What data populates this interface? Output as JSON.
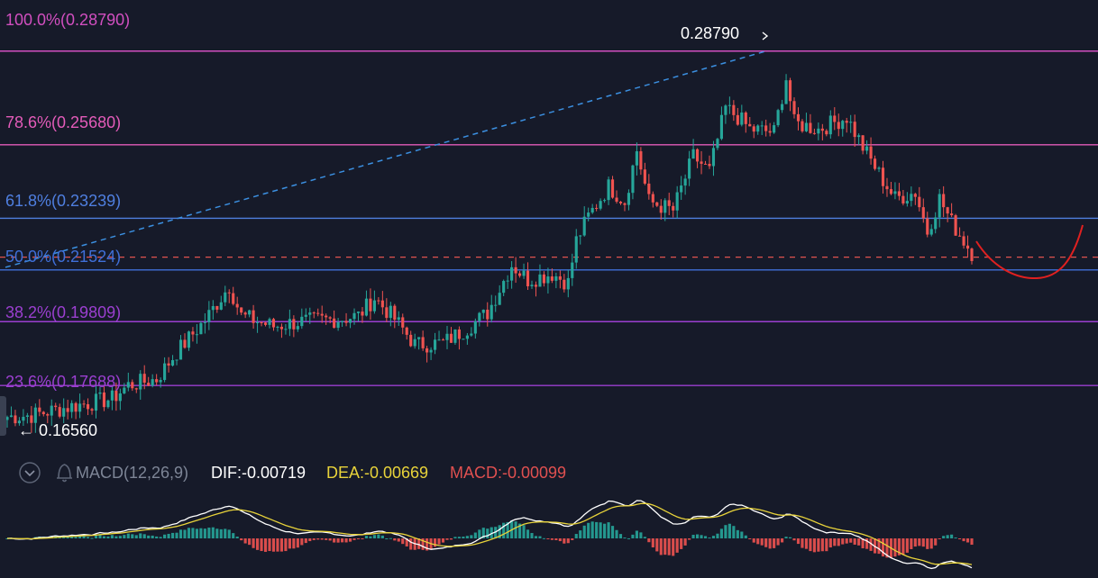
{
  "chart_data": {
    "type": "candlestick",
    "yaxis_range": [
      0.162,
      0.2935
    ],
    "fib_levels": [
      {
        "label": "100.0%(0.28790)",
        "value": 0.2879,
        "color": "#d24fc0"
      },
      {
        "label": "78.6%(0.25680)",
        "value": 0.2568,
        "color": "#e35bb9"
      },
      {
        "label": "61.8%(0.23239)",
        "value": 0.23239,
        "color": "#4f7fe0"
      },
      {
        "label": "50.0%(0.21524)",
        "value": 0.21524,
        "color": "#3f6fd8"
      },
      {
        "label": "38.2%(0.19809)",
        "value": 0.19809,
        "color": "#9b3fd0"
      },
      {
        "label": "23.6%(0.17688)",
        "value": 0.17688,
        "color": "#9b3fd0"
      }
    ],
    "current_price_line": {
      "value": 0.2195,
      "color": "#e0524f"
    },
    "high_marker": {
      "label": "0.28790",
      "value": 0.2879
    },
    "low_marker": {
      "label": "← 0.16560",
      "value": 0.1656
    },
    "trend_line": {
      "from": 0.2185,
      "to": 0.2879,
      "color": "#3b8fe0"
    },
    "projection_color": "#e02020",
    "candles": {
      "count": 240,
      "up_color": "#26a69a",
      "down_color": "#ef5350",
      "waypoints": [
        [
          0,
          0.1665
        ],
        [
          6,
          0.167
        ],
        [
          16,
          0.17
        ],
        [
          26,
          0.1725
        ],
        [
          30,
          0.177
        ],
        [
          37,
          0.179
        ],
        [
          42,
          0.188
        ],
        [
          49,
          0.1985
        ],
        [
          55,
          0.21
        ],
        [
          58,
          0.2
        ],
        [
          66,
          0.1965
        ],
        [
          72,
          0.198
        ],
        [
          82,
          0.199
        ],
        [
          87,
          0.2
        ],
        [
          91,
          0.206
        ],
        [
          96,
          0.199
        ],
        [
          101,
          0.1905
        ],
        [
          108,
          0.191
        ],
        [
          114,
          0.196
        ],
        [
          119,
          0.201
        ],
        [
          125,
          0.217
        ],
        [
          129,
          0.212
        ],
        [
          135,
          0.214
        ],
        [
          139,
          0.211
        ],
        [
          141,
          0.225
        ],
        [
          144,
          0.233
        ],
        [
          149,
          0.243
        ],
        [
          153,
          0.238
        ],
        [
          156,
          0.255
        ],
        [
          159,
          0.238
        ],
        [
          165,
          0.235
        ],
        [
          170,
          0.253
        ],
        [
          174,
          0.248
        ],
        [
          178,
          0.269
        ],
        [
          181,
          0.266
        ],
        [
          184,
          0.262
        ],
        [
          190,
          0.261
        ],
        [
          193,
          0.279
        ],
        [
          195,
          0.264
        ],
        [
          201,
          0.262
        ],
        [
          208,
          0.266
        ],
        [
          212,
          0.256
        ],
        [
          217,
          0.245
        ],
        [
          220,
          0.239
        ],
        [
          225,
          0.241
        ],
        [
          228,
          0.228
        ],
        [
          231,
          0.239
        ],
        [
          234,
          0.231
        ],
        [
          239,
          0.221
        ]
      ]
    },
    "macd": {
      "label": "MACD(12,26,9)",
      "dif_text": "DIF:-0.00719",
      "dea_text": "DEA:-0.00669",
      "macd_text": "MACD:-0.00099",
      "dif_color": "#ffffff",
      "dea_color": "#e8d33a",
      "macd_color": "#e05050"
    }
  }
}
